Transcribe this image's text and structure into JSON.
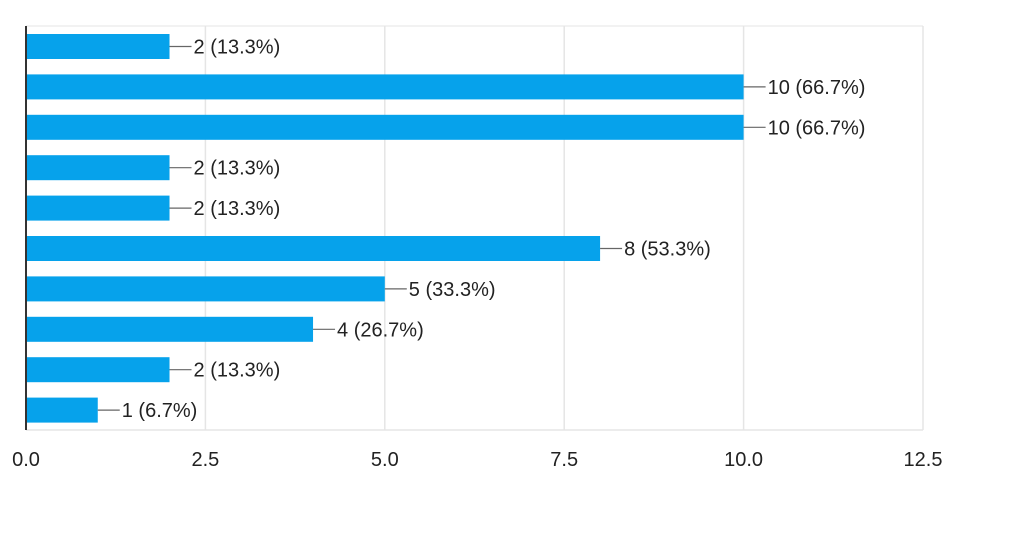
{
  "chart_data": {
    "type": "bar",
    "orientation": "horizontal",
    "values": [
      2,
      10,
      10,
      2,
      2,
      8,
      5,
      4,
      2,
      1
    ],
    "data_labels": [
      "2 (13.3%)",
      "10 (66.7%)",
      "10 (66.7%)",
      "2 (13.3%)",
      "2 (13.3%)",
      "8 (53.3%)",
      "5 (33.3%)",
      "4 (26.7%)",
      "2 (13.3%)",
      "1 (6.7%)"
    ],
    "xlim": [
      0,
      12.5
    ],
    "x_ticks": [
      0,
      2.5,
      5,
      7.5,
      10,
      12.5
    ],
    "x_tick_labels": [
      "0.0",
      "2.5",
      "5.0",
      "7.5",
      "10.0",
      "12.5"
    ],
    "grid": true,
    "bar_color": "#06a2eb",
    "gridline_color": "#e5e5e5",
    "axis_color": "#333333",
    "label_color": "#222222"
  }
}
